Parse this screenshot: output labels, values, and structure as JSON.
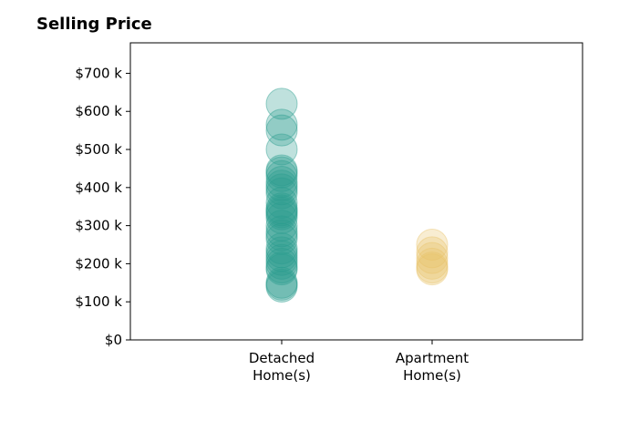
{
  "chart_data": {
    "type": "scatter",
    "title": "Selling Price",
    "xlabel": "",
    "ylabel": "",
    "categories": [
      "Detached\nHome(s)",
      "Apartment\nHome(s)"
    ],
    "y_ticks": [
      0,
      100000,
      200000,
      300000,
      400000,
      500000,
      600000,
      700000
    ],
    "y_tick_labels": [
      "$0",
      "$100 k",
      "$200 k",
      "$300 k",
      "$400 k",
      "$500 k",
      "$600 k",
      "$700 k"
    ],
    "ylim": [
      0,
      780000
    ],
    "grid": false,
    "series": [
      {
        "category": "Detached\nHome(s)",
        "color": "#2a9d8f",
        "values": [
          620000,
          565000,
          550000,
          500000,
          445000,
          440000,
          430000,
          415000,
          405000,
          395000,
          385000,
          360000,
          345000,
          340000,
          335000,
          330000,
          320000,
          300000,
          285000,
          275000,
          265000,
          240000,
          230000,
          220000,
          210000,
          200000,
          190000,
          185000,
          150000,
          145000,
          140000
        ]
      },
      {
        "category": "Apartment\nHome(s)",
        "color": "#e9c46a",
        "values": [
          250000,
          230000,
          215000,
          200000,
          190000,
          185000
        ]
      }
    ]
  }
}
